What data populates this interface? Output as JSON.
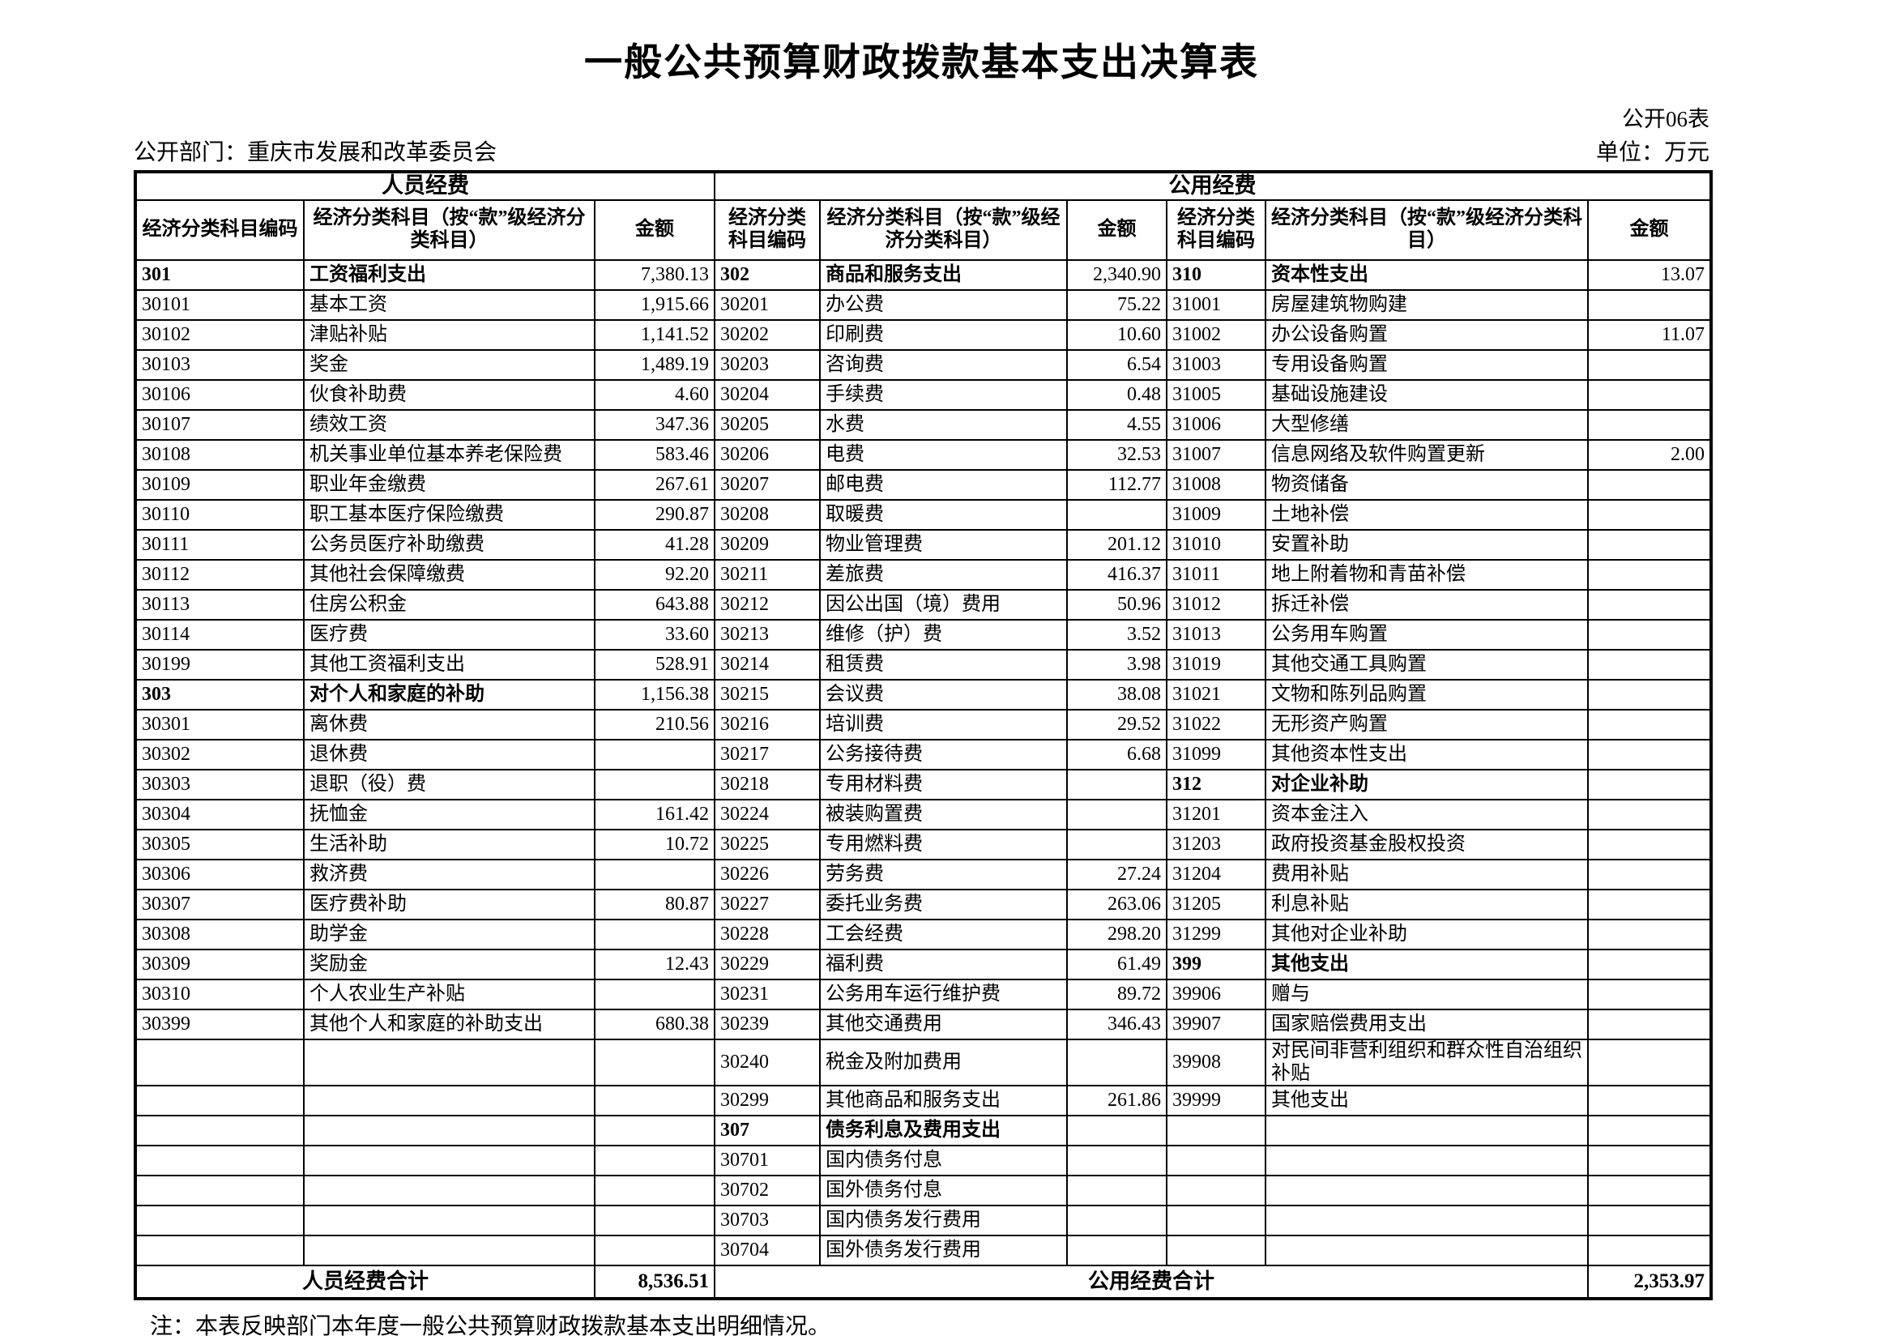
{
  "page": {
    "title": "一般公共预算财政拨款基本支出决算表",
    "table_code": "公开06表",
    "department_label": "公开部门：重庆市发展和改革委员会",
    "unit_label": "单位：万元",
    "note": "注：本表反映部门本年度一般公共预算财政拨款基本支出明细情况。"
  },
  "table": {
    "group_headers": [
      "人员经费",
      "公用经费"
    ],
    "column_headers": [
      "经济分类科目编码",
      "经济分类科目（按“款”级经济分类科目）",
      "金额"
    ],
    "rows": [
      [
        "301",
        "工资福利支出",
        "7,380.13",
        "302",
        "商品和服务支出",
        "2,340.90",
        "310",
        "资本性支出",
        "13.07"
      ],
      [
        "30101",
        "基本工资",
        "1,915.66",
        "30201",
        "办公费",
        "75.22",
        "31001",
        "房屋建筑物购建",
        ""
      ],
      [
        "30102",
        "津贴补贴",
        "1,141.52",
        "30202",
        "印刷费",
        "10.60",
        "31002",
        "办公设备购置",
        "11.07"
      ],
      [
        "30103",
        "奖金",
        "1,489.19",
        "30203",
        "咨询费",
        "6.54",
        "31003",
        "专用设备购置",
        ""
      ],
      [
        "30106",
        "伙食补助费",
        "4.60",
        "30204",
        "手续费",
        "0.48",
        "31005",
        "基础设施建设",
        ""
      ],
      [
        "30107",
        "绩效工资",
        "347.36",
        "30205",
        "水费",
        "4.55",
        "31006",
        "大型修缮",
        ""
      ],
      [
        "30108",
        "机关事业单位基本养老保险费",
        "583.46",
        "30206",
        "电费",
        "32.53",
        "31007",
        "信息网络及软件购置更新",
        "2.00"
      ],
      [
        "30109",
        "职业年金缴费",
        "267.61",
        "30207",
        "邮电费",
        "112.77",
        "31008",
        "物资储备",
        ""
      ],
      [
        "30110",
        "职工基本医疗保险缴费",
        "290.87",
        "30208",
        "取暖费",
        "",
        "31009",
        "土地补偿",
        ""
      ],
      [
        "30111",
        "公务员医疗补助缴费",
        "41.28",
        "30209",
        "物业管理费",
        "201.12",
        "31010",
        "安置补助",
        ""
      ],
      [
        "30112",
        "其他社会保障缴费",
        "92.20",
        "30211",
        "差旅费",
        "416.37",
        "31011",
        "地上附着物和青苗补偿",
        ""
      ],
      [
        "30113",
        "住房公积金",
        "643.88",
        "30212",
        "因公出国（境）费用",
        "50.96",
        "31012",
        "拆迁补偿",
        ""
      ],
      [
        "30114",
        "医疗费",
        "33.60",
        "30213",
        "维修（护）费",
        "3.52",
        "31013",
        "公务用车购置",
        ""
      ],
      [
        "30199",
        "其他工资福利支出",
        "528.91",
        "30214",
        "租赁费",
        "3.98",
        "31019",
        "其他交通工具购置",
        ""
      ],
      [
        "303",
        "对个人和家庭的补助",
        "1,156.38",
        "30215",
        "会议费",
        "38.08",
        "31021",
        "文物和陈列品购置",
        ""
      ],
      [
        "30301",
        "离休费",
        "210.56",
        "30216",
        "培训费",
        "29.52",
        "31022",
        "无形资产购置",
        ""
      ],
      [
        "30302",
        "退休费",
        "",
        "30217",
        "公务接待费",
        "6.68",
        "31099",
        "其他资本性支出",
        ""
      ],
      [
        "30303",
        "退职（役）费",
        "",
        "30218",
        "专用材料费",
        "",
        "312",
        "对企业补助",
        ""
      ],
      [
        "30304",
        "抚恤金",
        "161.42",
        "30224",
        "被装购置费",
        "",
        "31201",
        "资本金注入",
        ""
      ],
      [
        "30305",
        "生活补助",
        "10.72",
        "30225",
        "专用燃料费",
        "",
        "31203",
        "政府投资基金股权投资",
        ""
      ],
      [
        "30306",
        "救济费",
        "",
        "30226",
        "劳务费",
        "27.24",
        "31204",
        "费用补贴",
        ""
      ],
      [
        "30307",
        "医疗费补助",
        "80.87",
        "30227",
        "委托业务费",
        "263.06",
        "31205",
        "利息补贴",
        ""
      ],
      [
        "30308",
        "助学金",
        "",
        "30228",
        "工会经费",
        "298.20",
        "31299",
        "其他对企业补助",
        ""
      ],
      [
        "30309",
        "奖励金",
        "12.43",
        "30229",
        "福利费",
        "61.49",
        "399",
        "其他支出",
        ""
      ],
      [
        "30310",
        "个人农业生产补贴",
        "",
        "30231",
        "公务用车运行维护费",
        "89.72",
        "39906",
        "赠与",
        ""
      ],
      [
        "30399",
        "其他个人和家庭的补助支出",
        "680.38",
        "30239",
        "其他交通费用",
        "346.43",
        "39907",
        "国家赔偿费用支出",
        ""
      ],
      [
        "",
        "",
        "",
        "30240",
        "税金及附加费用",
        "",
        "39908",
        "对民间非营利组织和群众性自治组织补贴",
        ""
      ],
      [
        "",
        "",
        "",
        "30299",
        "其他商品和服务支出",
        "261.86",
        "39999",
        "其他支出",
        ""
      ],
      [
        "",
        "",
        "",
        "307",
        "债务利息及费用支出",
        "",
        "",
        "",
        ""
      ],
      [
        "",
        "",
        "",
        "30701",
        "国内债务付息",
        "",
        "",
        "",
        ""
      ],
      [
        "",
        "",
        "",
        "30702",
        "国外债务付息",
        "",
        "",
        "",
        ""
      ],
      [
        "",
        "",
        "",
        "30703",
        "国内债务发行费用",
        "",
        "",
        "",
        ""
      ],
      [
        "",
        "",
        "",
        "30704",
        "国外债务发行费用",
        "",
        "",
        "",
        ""
      ]
    ],
    "totals": {
      "left_label": "人员经费合计",
      "left_amount": "8,536.51",
      "right_label": "公用经费合计",
      "right_amount": "2,353.97"
    }
  }
}
